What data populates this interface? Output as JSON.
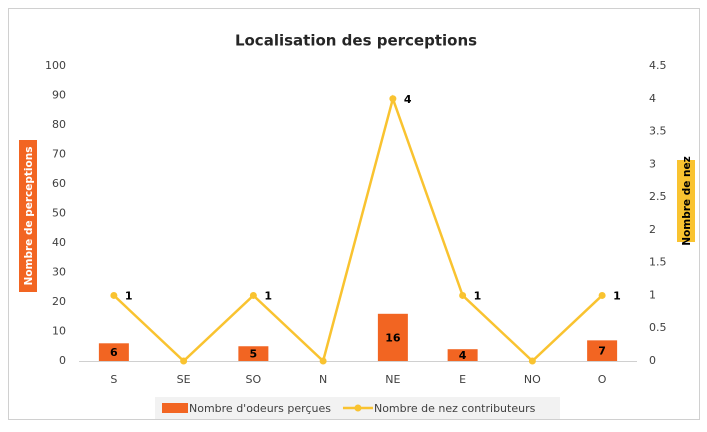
{
  "chart_data": {
    "type": "combo",
    "title": "Localisation des perceptions",
    "categories": [
      "S",
      "SE",
      "SO",
      "N",
      "NE",
      "E",
      "NO",
      "O"
    ],
    "series": [
      {
        "name": "Nombre d'odeurs perçues",
        "type": "bar",
        "color": "#f26522",
        "values": [
          6,
          0,
          5,
          0,
          16,
          4,
          0,
          7
        ],
        "value_labels": [
          "6",
          null,
          "5",
          null,
          "16",
          "4",
          null,
          "7"
        ]
      },
      {
        "name": "Nombre de nez contributeurs",
        "type": "line",
        "axis": "y2",
        "color": "#f9c330",
        "values": [
          1,
          0,
          1,
          0,
          4,
          1,
          0,
          1
        ],
        "value_labels": [
          "1",
          null,
          "1",
          null,
          "4",
          "1",
          null,
          "1"
        ]
      }
    ],
    "ylabel": "Nombre de perceptions",
    "y2label": "Nombre de nez",
    "ylim": [
      0,
      100
    ],
    "yticks": [
      0,
      10,
      20,
      30,
      40,
      50,
      60,
      70,
      80,
      90,
      100
    ],
    "y2lim": [
      0,
      4.5
    ],
    "y2ticks": [
      0,
      0.5,
      1,
      1.5,
      2,
      2.5,
      3,
      3.5,
      4,
      4.5
    ],
    "grid": false,
    "legend": "bottom"
  }
}
